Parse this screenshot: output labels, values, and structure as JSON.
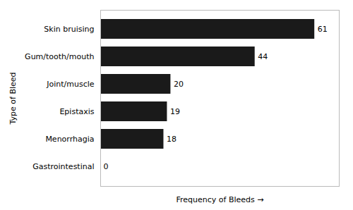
{
  "chart_data": {
    "type": "bar",
    "orientation": "horizontal",
    "categories": [
      "Gastrointestinal",
      "Menorrhagia",
      "Epistaxis",
      "Joint/muscle",
      "Gum/tooth/mouth",
      "Skin bruising"
    ],
    "values": [
      0,
      18,
      19,
      20,
      44,
      61
    ],
    "color": "#1a1a1a",
    "xlabel": "Frequency of Bleeds",
    "ylabel": "Type of Bleed",
    "xlim": [
      0,
      68
    ],
    "data_labels": true,
    "tick_labels": "y"
  }
}
